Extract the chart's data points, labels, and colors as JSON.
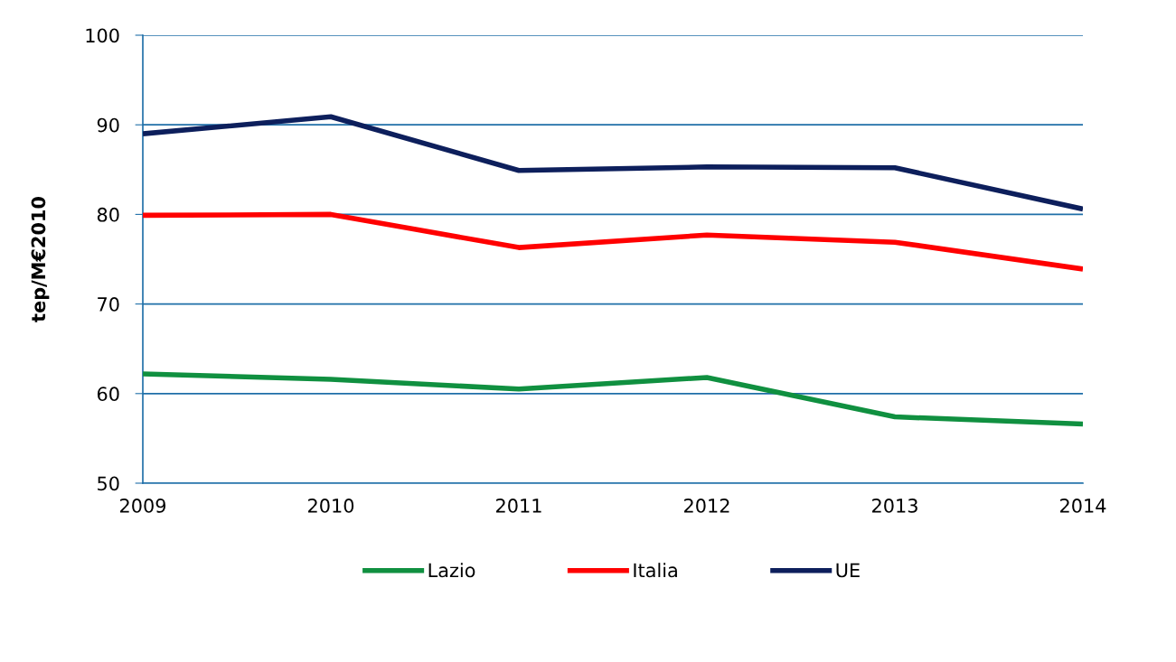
{
  "chart_data": {
    "type": "line",
    "ylabel": "tep/M€2010",
    "categories": [
      "2009",
      "2010",
      "2011",
      "2012",
      "2013",
      "2014"
    ],
    "series": [
      {
        "name": "Lazio",
        "color": "#109040",
        "values": [
          62.2,
          61.6,
          60.5,
          61.8,
          57.4,
          56.6
        ]
      },
      {
        "name": "Italia",
        "color": "#ff0000",
        "values": [
          79.9,
          80.0,
          76.3,
          77.7,
          76.9,
          73.9
        ]
      },
      {
        "name": "UE",
        "color": "#0d1f5c",
        "values": [
          89.0,
          90.9,
          84.9,
          85.3,
          85.2,
          80.6
        ]
      }
    ],
    "ylim": [
      50,
      100
    ],
    "yticks": [
      50,
      60,
      70,
      80,
      90,
      100
    ],
    "grid": "y",
    "legend": "bottom",
    "marker": "none",
    "line_style": "solid"
  }
}
